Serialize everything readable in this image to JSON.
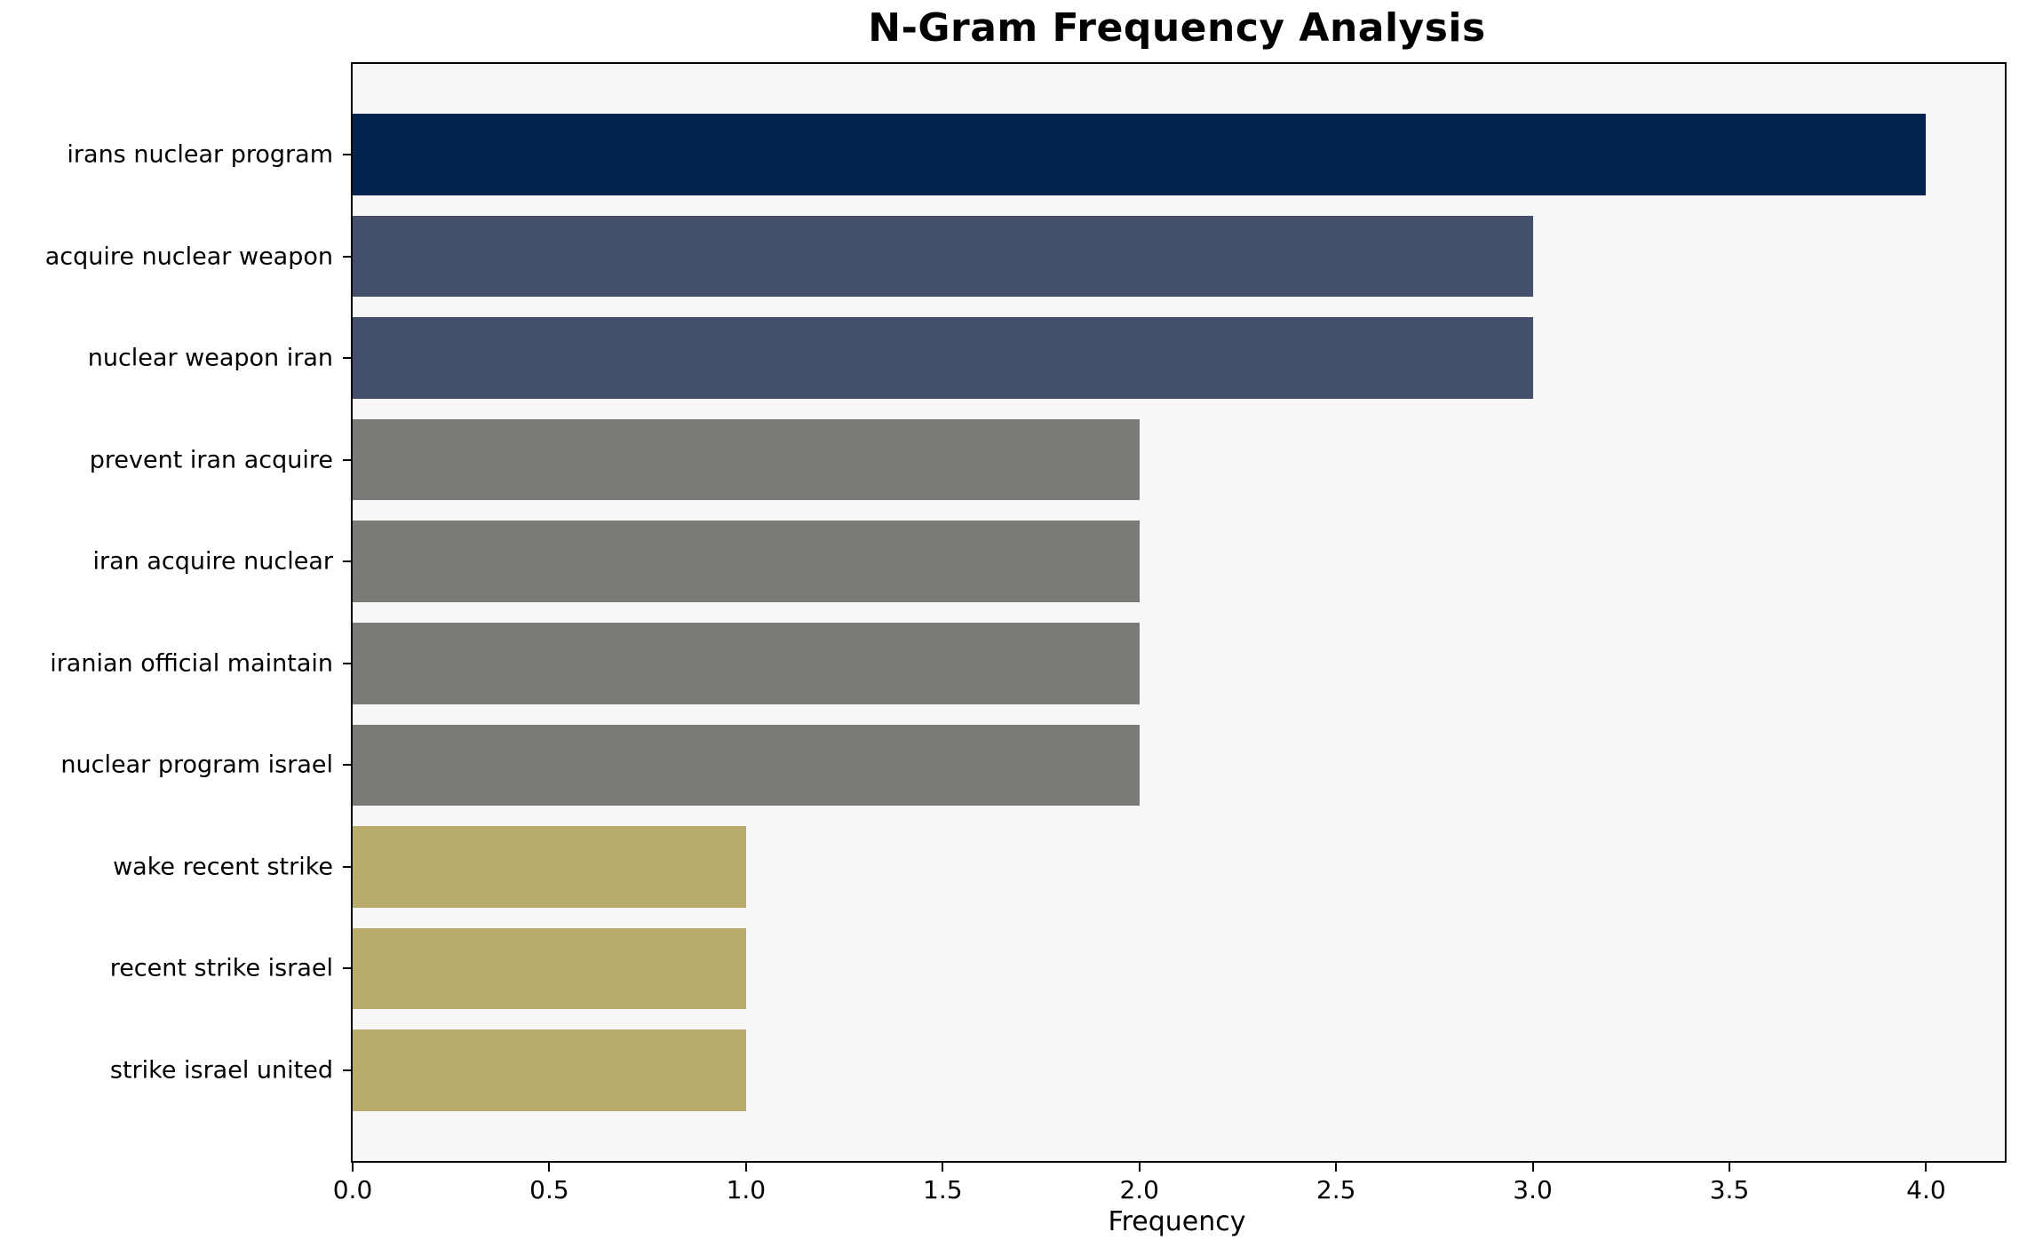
{
  "chart_data": {
    "type": "bar",
    "orientation": "horizontal",
    "title": "N-Gram Frequency Analysis",
    "xlabel": "Frequency",
    "ylabel": "",
    "categories": [
      "irans nuclear program",
      "acquire nuclear weapon",
      "nuclear weapon iran",
      "prevent iran acquire",
      "iran acquire nuclear",
      "iranian official maintain",
      "nuclear program israel",
      "wake recent strike",
      "recent strike israel",
      "strike israel united"
    ],
    "values": [
      4,
      3,
      3,
      2,
      2,
      2,
      2,
      1,
      1,
      1
    ],
    "bar_colors": [
      "#02244d",
      "#444f6b",
      "#444f6b",
      "#7a7a77",
      "#7a7a77",
      "#7a7a77",
      "#7a7a77",
      "#b8ad6c",
      "#b8ad6c",
      "#b8ad6c"
    ],
    "xlim": [
      0,
      4.2
    ],
    "xticks": [
      0,
      0.5,
      1,
      1.5,
      2,
      2.5,
      3,
      3.5,
      4
    ],
    "xtick_labels": [
      "0.0",
      "0.5",
      "1.0",
      "1.5",
      "2.0",
      "2.5",
      "3.0",
      "3.5",
      "4.0"
    ],
    "grid": false,
    "legend": null,
    "plot_bg": "#f7f7f7",
    "figure_bg": "#ffffff",
    "spine_color": "#000000",
    "title_color": "#000000",
    "tick_label_color": "#000000"
  }
}
